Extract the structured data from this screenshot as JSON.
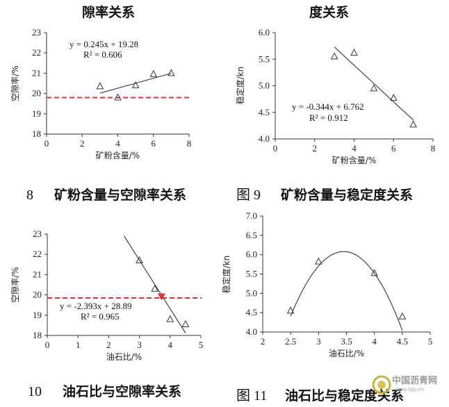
{
  "titles": {
    "top_left": "隙率关系",
    "top_right": "度关系"
  },
  "captions": {
    "c8_num": "8",
    "c8_text": "矿粉含量与空隙率关系",
    "c9_num": "图 9",
    "c9_text": "矿粉含量与稳定度关系",
    "c10_num": "10",
    "c10_text": "油石比与空隙率关系",
    "c11_num": "图 11",
    "c11_text": "油石比与稳定度关系"
  },
  "watermark": {
    "text": "中国沥青网",
    "url": "www.lqjy.cn"
  },
  "colors": {
    "reference_line": "#e0332e",
    "marker": "#e0332e",
    "axis": "#333333"
  },
  "chart_data": [
    {
      "id": "fig8",
      "type": "scatter",
      "xlabel": "矿粉含量/%",
      "ylabel": "空隙率/%",
      "xlim": [
        0,
        8
      ],
      "ylim": [
        18,
        23
      ],
      "xticks": [
        "0",
        "2",
        "4",
        "6",
        "8"
      ],
      "yticks": [
        "18",
        "19",
        "20",
        "21",
        "22",
        "23"
      ],
      "x": [
        3,
        4,
        5,
        6,
        7
      ],
      "y": [
        20.35,
        19.8,
        20.4,
        20.95,
        21.0
      ],
      "trend": {
        "type": "linear",
        "slope": 0.245,
        "intercept": 19.28,
        "x_range": [
          3,
          7
        ]
      },
      "equation": "y = 0.245x + 19.28",
      "r2": "R² = 0.606",
      "reference_y": 19.8
    },
    {
      "id": "fig9",
      "type": "scatter",
      "xlabel": "矿粉含量/%",
      "ylabel": "稳定度/kn",
      "xlim": [
        0,
        8
      ],
      "ylim": [
        4.0,
        6.0
      ],
      "xticks": [
        "0",
        "2",
        "4",
        "6",
        "8"
      ],
      "yticks": [
        "4.0",
        "4.5",
        "5.0",
        "5.5",
        "6.0"
      ],
      "x": [
        3,
        4,
        5,
        6,
        7
      ],
      "y": [
        5.55,
        5.62,
        4.95,
        4.77,
        4.27
      ],
      "trend": {
        "type": "linear",
        "slope": -0.344,
        "intercept": 6.762,
        "x_range": [
          3,
          7
        ]
      },
      "equation": "y = -0.344x + 6.762",
      "r2": "R² = 0.912"
    },
    {
      "id": "fig10",
      "type": "scatter",
      "xlabel": "油石比/%",
      "ylabel": "空隙率/%",
      "xlim": [
        0,
        5
      ],
      "ylim": [
        18,
        23
      ],
      "xticks": [
        "0",
        "1",
        "2",
        "3",
        "4",
        "5"
      ],
      "yticks": [
        "18",
        "19",
        "20",
        "21",
        "22",
        "23"
      ],
      "x": [
        3.0,
        3.5,
        4.0,
        4.5
      ],
      "y": [
        21.7,
        20.3,
        18.8,
        18.55
      ],
      "trend": {
        "type": "linear",
        "slope": -2.393,
        "intercept": 28.89,
        "x_range": [
          2.5,
          4.5
        ]
      },
      "equation": "y = -2.393x + 28.89",
      "r2": "R² = 0.965",
      "reference_y": 19.85,
      "marker_point": {
        "x": 3.72,
        "y": 19.9
      }
    },
    {
      "id": "fig11",
      "type": "scatter",
      "xlabel": "油石比/%",
      "ylabel": "稳定度/kn",
      "xlim": [
        2,
        5
      ],
      "ylim": [
        4.0,
        7.0
      ],
      "xticks": [
        "2",
        "2.5",
        "3",
        "3.5",
        "4",
        "4.5",
        "5"
      ],
      "yticks": [
        "4.0",
        "4.5",
        "5.0",
        "5.5",
        "6.0",
        "6.5",
        "7.0"
      ],
      "x": [
        2.5,
        3.0,
        4.0,
        4.5
      ],
      "y": [
        4.55,
        5.82,
        5.52,
        4.4
      ],
      "trend": {
        "type": "quadratic",
        "vertex_x": 3.45,
        "vertex_y": 6.08,
        "a": -1.85,
        "x_range": [
          2.5,
          4.5
        ]
      }
    }
  ]
}
